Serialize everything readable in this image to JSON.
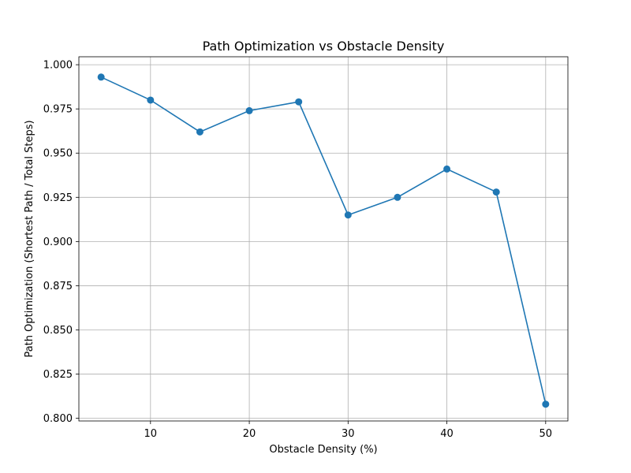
{
  "chart_data": {
    "type": "line",
    "title": "Path Optimization vs Obstacle Density",
    "xlabel": "Obstacle Density (%)",
    "ylabel": "Path Optimization (Shortest Path / Total Steps)",
    "xlim": [
      2.75,
      52.25
    ],
    "ylim": [
      0.7985,
      1.0045
    ],
    "xticks": [
      10,
      20,
      30,
      40,
      50
    ],
    "xtick_labels": [
      "10",
      "20",
      "30",
      "40",
      "50"
    ],
    "yticks": [
      0.8,
      0.825,
      0.85,
      0.875,
      0.9,
      0.925,
      0.95,
      0.975,
      1.0
    ],
    "ytick_labels": [
      "0.800",
      "0.825",
      "0.850",
      "0.875",
      "0.900",
      "0.925",
      "0.950",
      "0.975",
      "1.000"
    ],
    "grid": true,
    "series": [
      {
        "x": [
          5,
          10,
          15,
          20,
          25,
          30,
          35,
          40,
          45,
          50
        ],
        "values": [
          0.993,
          0.98,
          0.962,
          0.974,
          0.979,
          0.915,
          0.925,
          0.941,
          0.928,
          0.808
        ],
        "color": "#1f77b4",
        "marker": "circle"
      }
    ]
  }
}
